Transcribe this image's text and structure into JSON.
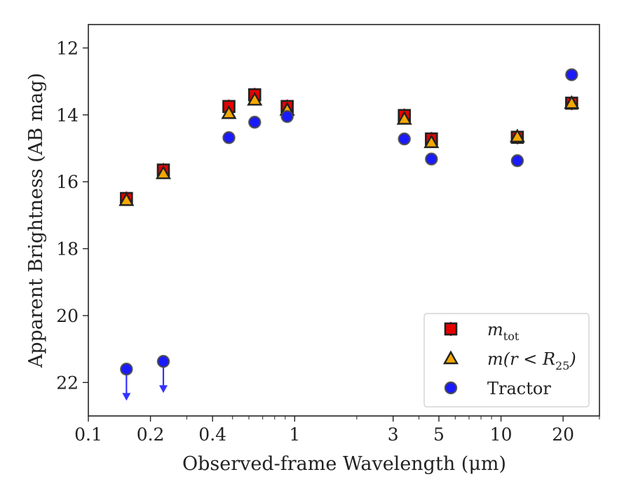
{
  "chart_data": {
    "type": "scatter",
    "xlabel": "Observed-frame Wavelength (μm)",
    "ylabel": "Apparent Brightness (AB mag)",
    "x_scale": "log",
    "xlim": [
      0.1,
      30
    ],
    "ylim": [
      23,
      11.3
    ],
    "y_inverted": true,
    "x_ticks": [
      {
        "value": 0.1,
        "label": "0.1"
      },
      {
        "value": 0.2,
        "label": "0.2"
      },
      {
        "value": 0.4,
        "label": "0.4"
      },
      {
        "value": 1,
        "label": "1"
      },
      {
        "value": 3,
        "label": "3"
      },
      {
        "value": 5,
        "label": "5"
      },
      {
        "value": 10,
        "label": "10"
      },
      {
        "value": 20,
        "label": "20"
      }
    ],
    "y_ticks": [
      {
        "value": 12,
        "label": "12"
      },
      {
        "value": 14,
        "label": "14"
      },
      {
        "value": 16,
        "label": "16"
      },
      {
        "value": 18,
        "label": "18"
      },
      {
        "value": 20,
        "label": "20"
      },
      {
        "value": 22,
        "label": "22"
      }
    ],
    "legend_placement": "lower-right",
    "series": [
      {
        "name": "m_tot",
        "legend_main": "m",
        "legend_sub": "tot",
        "marker": "square",
        "color": "#e60000",
        "points": [
          {
            "x": 0.153,
            "y": 16.5
          },
          {
            "x": 0.231,
            "y": 15.65
          },
          {
            "x": 0.48,
            "y": 13.75
          },
          {
            "x": 0.64,
            "y": 13.4
          },
          {
            "x": 0.92,
            "y": 13.75
          },
          {
            "x": 3.4,
            "y": 14.02
          },
          {
            "x": 4.6,
            "y": 14.72
          },
          {
            "x": 12.0,
            "y": 14.67
          },
          {
            "x": 22.0,
            "y": 13.65
          }
        ]
      },
      {
        "name": "m(r < R_25)",
        "legend_main": "m(r < R",
        "legend_sub": "25",
        "legend_tail": ")",
        "marker": "triangle",
        "color": "#f5a800",
        "points": [
          {
            "x": 0.153,
            "y": 16.55
          },
          {
            "x": 0.231,
            "y": 15.75
          },
          {
            "x": 0.48,
            "y": 13.95
          },
          {
            "x": 0.64,
            "y": 13.55
          },
          {
            "x": 0.92,
            "y": 13.85
          },
          {
            "x": 3.4,
            "y": 14.12
          },
          {
            "x": 4.6,
            "y": 14.82
          },
          {
            "x": 12.0,
            "y": 14.65
          },
          {
            "x": 22.0,
            "y": 13.65
          }
        ]
      },
      {
        "name": "Tractor",
        "legend_main": "Tractor",
        "marker": "circle",
        "color": "#1a1aff",
        "points": [
          {
            "x": 0.153,
            "y": 21.6,
            "upper_limit": true
          },
          {
            "x": 0.231,
            "y": 21.37,
            "upper_limit": true
          },
          {
            "x": 0.48,
            "y": 14.68
          },
          {
            "x": 0.64,
            "y": 14.22
          },
          {
            "x": 0.92,
            "y": 14.05
          },
          {
            "x": 3.4,
            "y": 14.72
          },
          {
            "x": 4.6,
            "y": 15.32
          },
          {
            "x": 12.0,
            "y": 15.37
          },
          {
            "x": 22.0,
            "y": 12.8
          }
        ]
      }
    ]
  }
}
